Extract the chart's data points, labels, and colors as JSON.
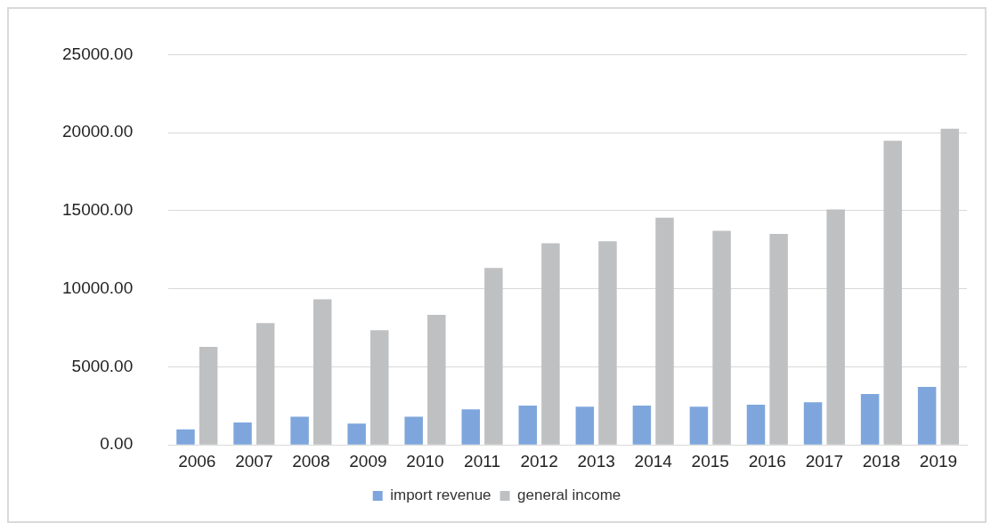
{
  "chart_data": {
    "type": "bar",
    "categories": [
      "2006",
      "2007",
      "2008",
      "2009",
      "2010",
      "2011",
      "2012",
      "2013",
      "2014",
      "2015",
      "2016",
      "2017",
      "2018",
      "2019"
    ],
    "series": [
      {
        "name": "import revenue",
        "color": "#7ea6dc",
        "values": [
          1000,
          1430,
          1810,
          1370,
          1810,
          2270,
          2520,
          2440,
          2520,
          2440,
          2580,
          2730,
          3260,
          3720
        ]
      },
      {
        "name": "general income",
        "color": "#bfc0c2",
        "values": [
          6280,
          7800,
          9320,
          7340,
          8330,
          11340,
          12920,
          13050,
          14560,
          13720,
          13510,
          15080,
          19480,
          20250
        ]
      }
    ],
    "ylim": [
      0,
      25000
    ],
    "yticks": [
      {
        "value": 0,
        "label": "0.00"
      },
      {
        "value": 5000,
        "label": "5000.00"
      },
      {
        "value": 10000,
        "label": "10000.00"
      },
      {
        "value": 15000,
        "label": "15000.00"
      },
      {
        "value": 20000,
        "label": "20000.00"
      },
      {
        "value": 25000,
        "label": "25000.00"
      }
    ],
    "grid": "y",
    "legend": "bottom"
  }
}
